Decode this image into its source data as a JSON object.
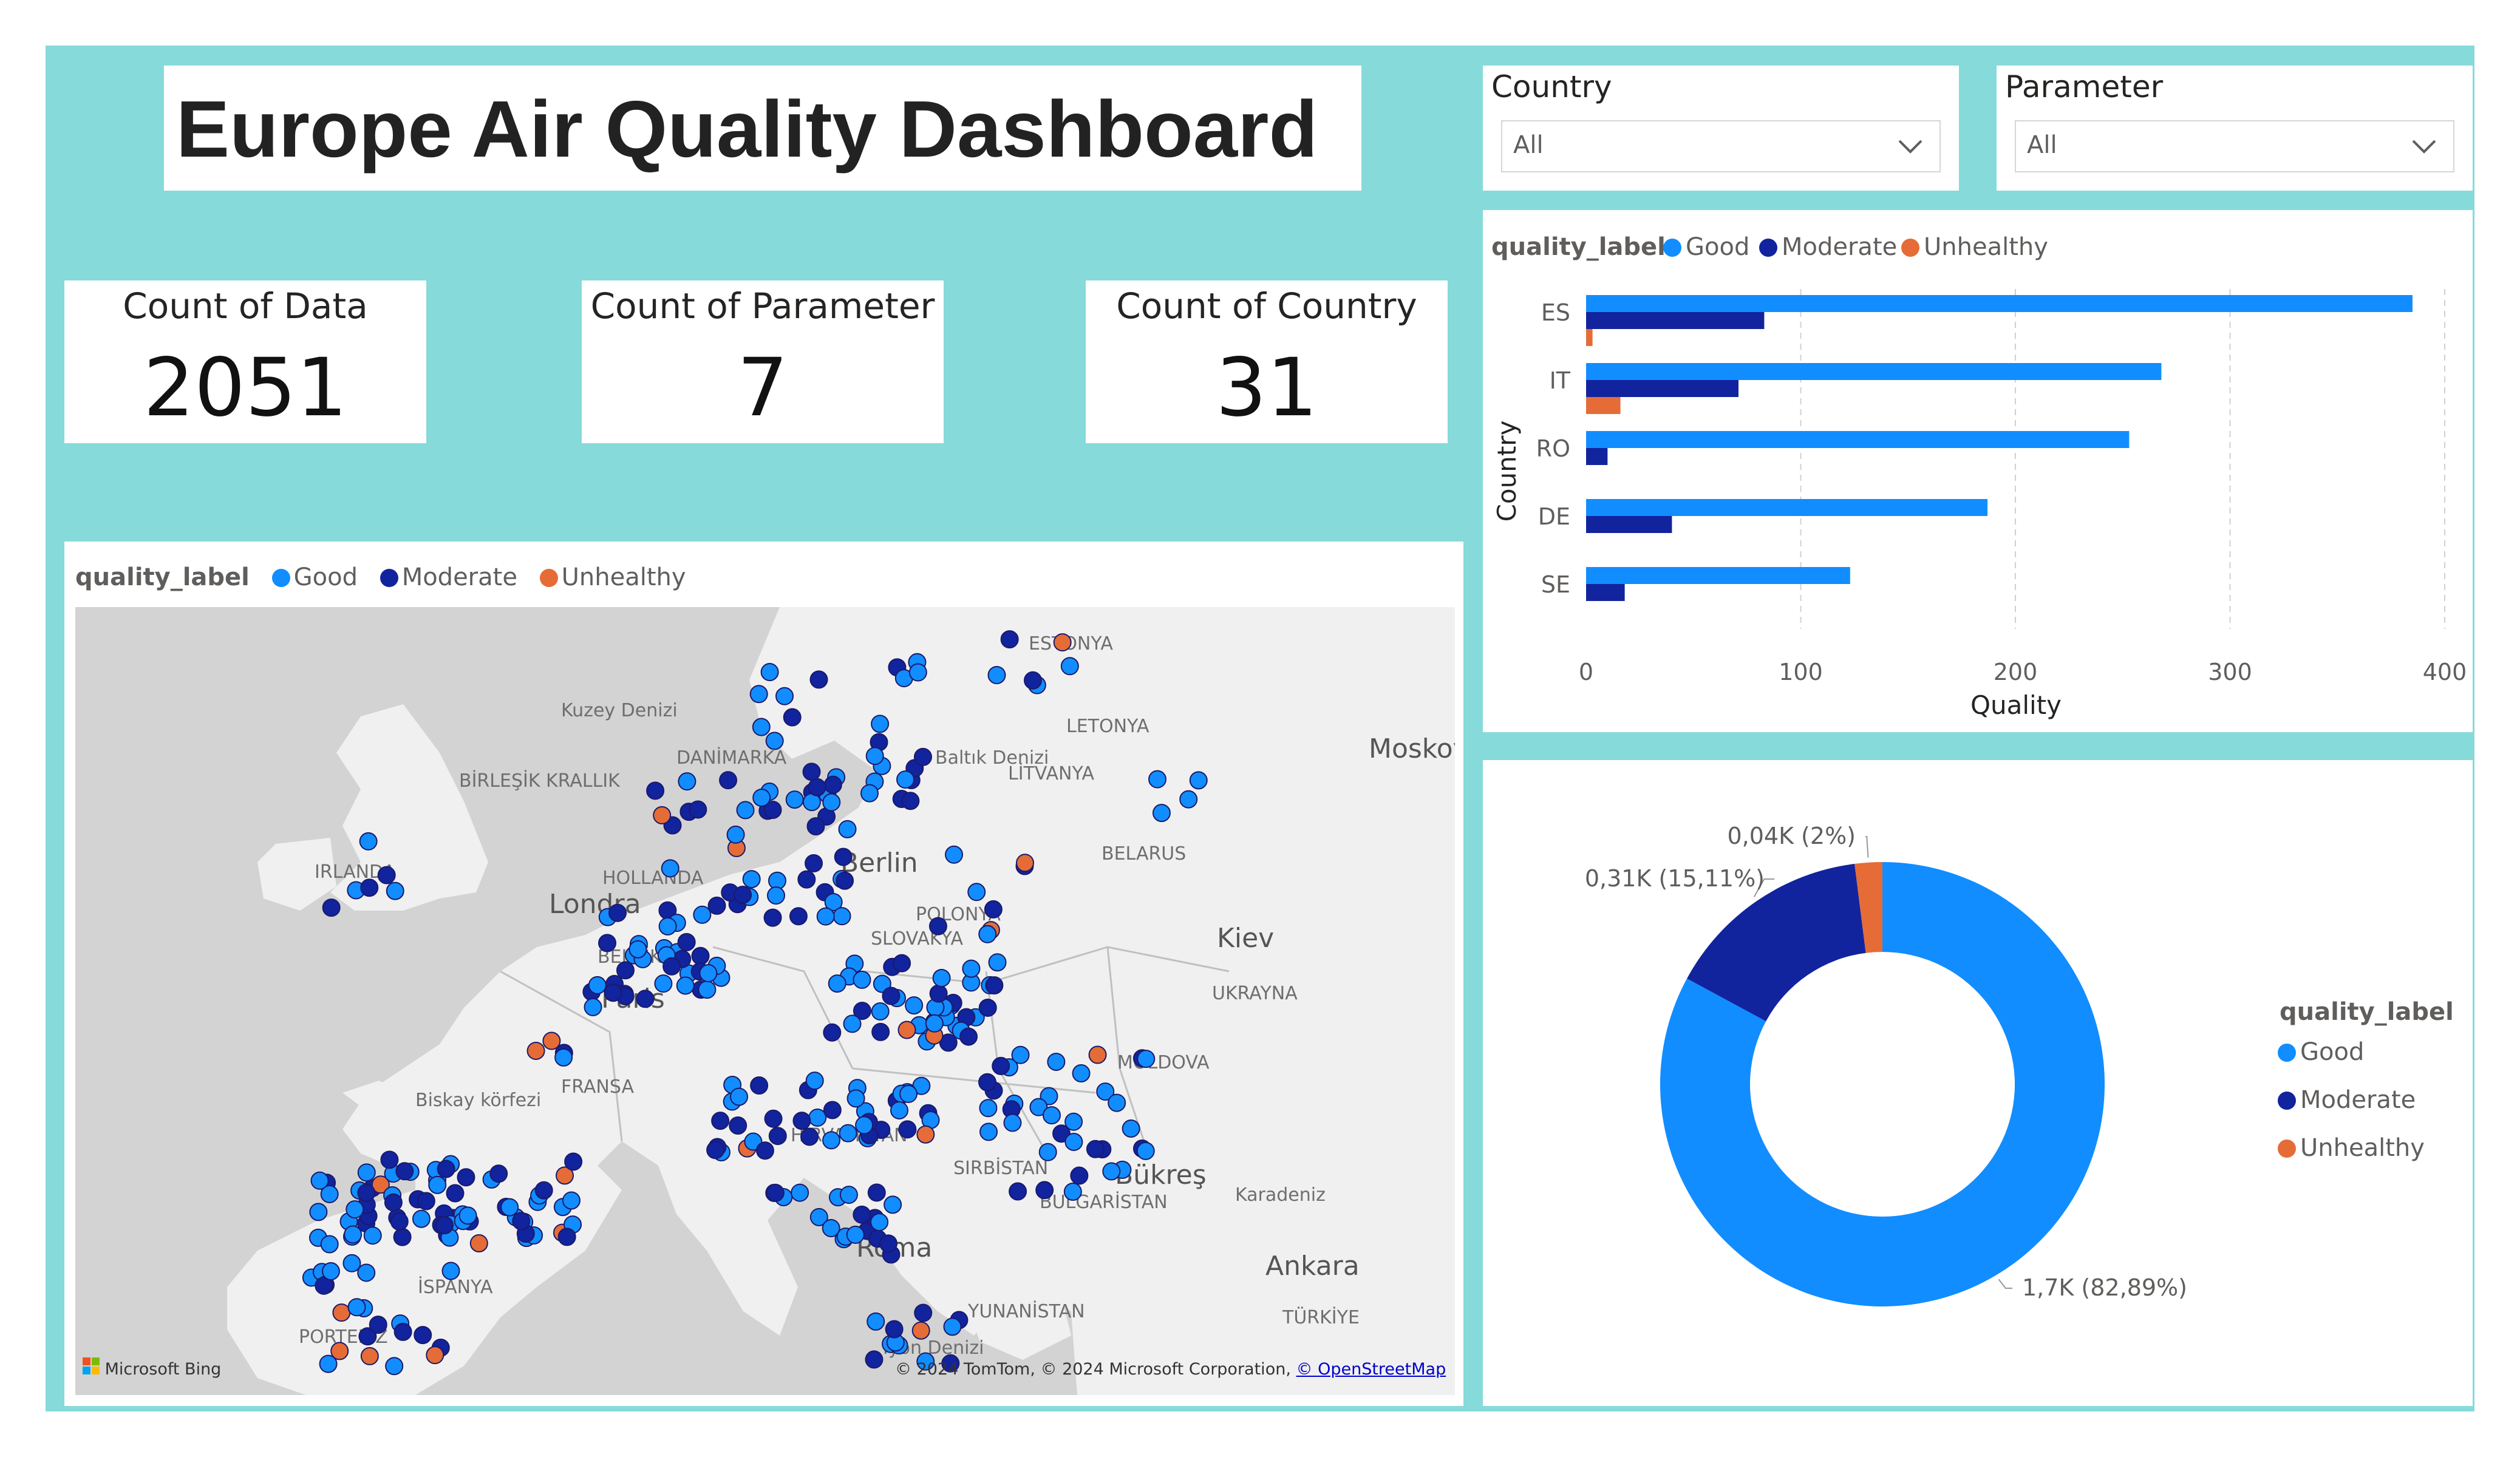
{
  "dashboard": {
    "title": "Europe Air Quality Dashboard"
  },
  "kpis": [
    {
      "label": "Count of Data",
      "value": "2051"
    },
    {
      "label": "Count of Parameter",
      "value": "7"
    },
    {
      "label": "Count of Country",
      "value": "31"
    }
  ],
  "slicers": {
    "country": {
      "label": "Country",
      "value": "All"
    },
    "parameter": {
      "label": "Parameter",
      "value": "All"
    }
  },
  "legend": {
    "title": "quality_label",
    "items": [
      {
        "name": "Good",
        "color": "#118dff"
      },
      {
        "name": "Moderate",
        "color": "#12239e"
      },
      {
        "name": "Unhealthy",
        "color": "#e66c37"
      }
    ]
  },
  "map": {
    "labels": [
      "ESTONYA",
      "Kuzey Denizi",
      "DANİMARKA",
      "Baltık Denizi",
      "LETONYA",
      "LİTVANYA",
      "Moskova",
      "BİRLEŞİK KRALLIK",
      "IRLANDA",
      "HOLLANDA",
      "Berlin",
      "BELARUS",
      "Londra",
      "POLONYA",
      "BELÇİKA",
      "Kiev",
      "Paris",
      "UKRAYNA",
      "SLOVAKYA",
      "MOLDOVA",
      "FRANSA",
      "Biskay körfezi",
      "HIRVATİSTAN",
      "SIRBİSTAN",
      "Bükreş",
      "Karadeniz",
      "BULGARİSTAN",
      "İSPANYA",
      "Ankara",
      "TÜRKİYE",
      "PORTEKİZ",
      "YUNANİSTAN",
      "İyon Denizi",
      "Roma"
    ],
    "bing_logo": "Microsoft Bing",
    "attribution": "© 2024 TomTom, © 2024 Microsoft Corporation,",
    "attribution_link": "© OpenStreetMap"
  },
  "chart_data": [
    {
      "type": "bar",
      "orientation": "horizontal",
      "categories": [
        "ES",
        "IT",
        "RO",
        "DE",
        "SE"
      ],
      "series": [
        {
          "name": "Good",
          "values": [
            385,
            268,
            253,
            187,
            123
          ]
        },
        {
          "name": "Moderate",
          "values": [
            83,
            71,
            10,
            40,
            18
          ]
        },
        {
          "name": "Unhealthy",
          "values": [
            3,
            16,
            0,
            0,
            0
          ]
        }
      ],
      "xlabel": "Quality",
      "ylabel": "Country",
      "xticks": [
        "0",
        "100",
        "200",
        "300",
        "400"
      ],
      "xlim": [
        0,
        400
      ],
      "grid": true,
      "legend": "top-left"
    },
    {
      "type": "pie",
      "donut": true,
      "slices": [
        {
          "name": "Good",
          "value": 82.89,
          "label": "1,7K (82,89%)"
        },
        {
          "name": "Moderate",
          "value": 15.11,
          "label": "0,31K (15,11%)"
        },
        {
          "name": "Unhealthy",
          "value": 2,
          "label": "0,04K (2%)"
        }
      ],
      "legend": "right"
    }
  ]
}
